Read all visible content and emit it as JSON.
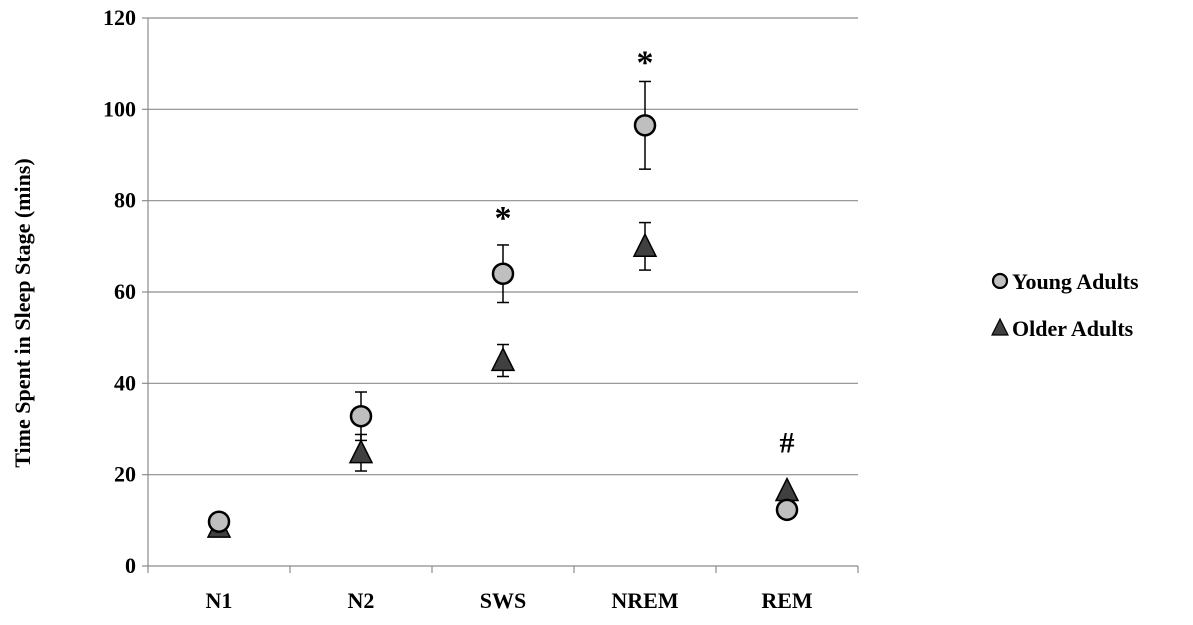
{
  "chart_data": {
    "type": "scatter",
    "title": "",
    "xlabel": "",
    "ylabel": "Time Spent in Sleep Stage (mins)",
    "categories": [
      "N1",
      "N2",
      "SWS",
      "NREM",
      "REM"
    ],
    "ylim": [
      0,
      120
    ],
    "yticks": [
      0,
      20,
      40,
      60,
      80,
      100,
      120
    ],
    "grid": true,
    "legend_position": "right",
    "series": [
      {
        "name": "Young Adults",
        "marker": "circle",
        "color": "#bfbfbf",
        "values": [
          9.7,
          32.8,
          64.0,
          96.5,
          12.3
        ],
        "error": [
          0,
          5.3,
          6.3,
          9.6,
          0
        ]
      },
      {
        "name": "Older Adults",
        "marker": "triangle",
        "color": "#404040",
        "values": [
          8.5,
          24.8,
          45.0,
          70.0,
          16.5
        ],
        "error": [
          0,
          4.0,
          3.5,
          5.2,
          0
        ]
      }
    ],
    "annotations": [
      {
        "category": "SWS",
        "text": "*",
        "y": 76
      },
      {
        "category": "NREM",
        "text": "*",
        "y": 110
      },
      {
        "category": "REM",
        "text": "#",
        "y": 27
      }
    ]
  }
}
